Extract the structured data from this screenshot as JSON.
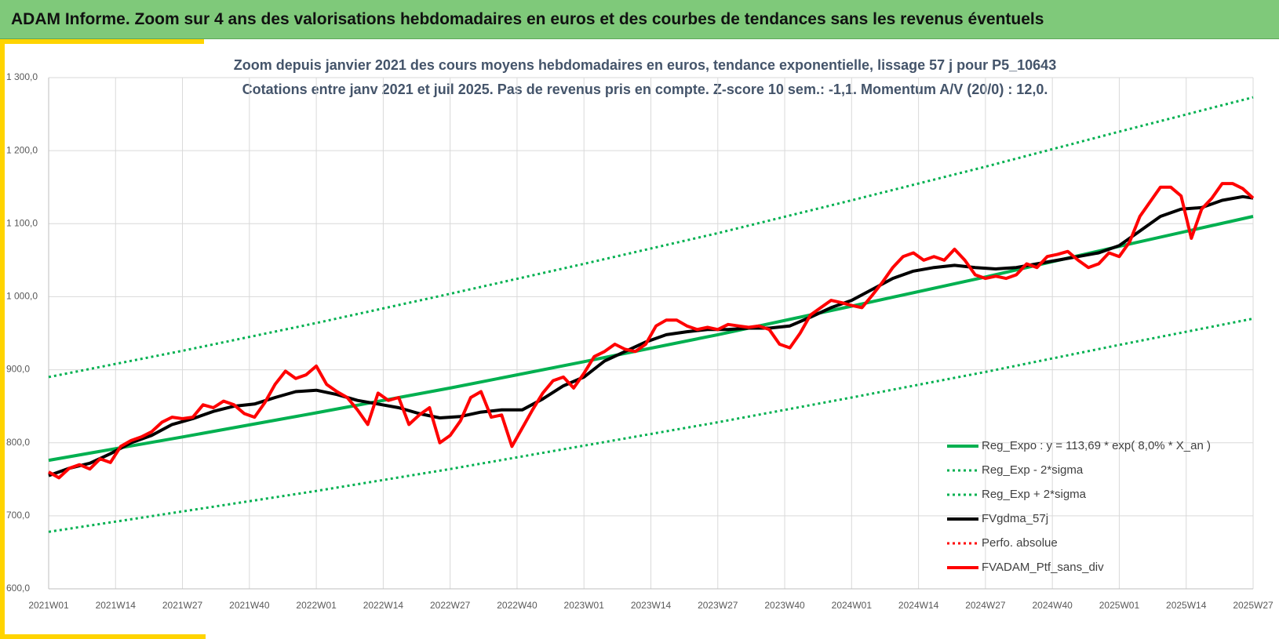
{
  "header": {
    "title": "ADAM Informe. Zoom sur 4 ans des valorisations hebdomadaires en euros et des courbes de tendances sans les revenus éventuels"
  },
  "chart_data": {
    "type": "line",
    "title": "Zoom depuis janvier 2021 des cours moyens hebdomadaires  en euros, tendance exponentielle, lissage 57 j pour P5_10643",
    "subtitle": "Cotations entre janv 2021 et juil 2025. Pas de revenus pris en compte. Z-score 10 sem.: -1,1. Momentum A/V (20/0) : 12,0.",
    "xticks": [
      "2021W01",
      "2021W14",
      "2021W27",
      "2021W40",
      "2022W01",
      "2022W14",
      "2022W27",
      "2022W40",
      "2023W01",
      "2023W14",
      "2023W27",
      "2023W40",
      "2024W01",
      "2024W14",
      "2024W27",
      "2024W40",
      "2025W01",
      "2025W14",
      "2025W27"
    ],
    "ylim": [
      600,
      1300
    ],
    "yticks": [
      {
        "value": 600,
        "label": "600,0"
      },
      {
        "value": 700,
        "label": "700,0"
      },
      {
        "value": 800,
        "label": "800,0"
      },
      {
        "value": 900,
        "label": "900,0"
      },
      {
        "value": 1000,
        "label": "1 000,0"
      },
      {
        "value": 1100,
        "label": "1 100,0"
      },
      {
        "value": 1200,
        "label": "1 200,0"
      },
      {
        "value": 1300,
        "label": "1 300,0"
      }
    ],
    "grid": true,
    "legend": "right",
    "series": [
      {
        "name": "Reg_Expo : y = 113,69 * exp( 8,0% *  X_an )",
        "color": "#00b050",
        "dash": "solid",
        "width": 4,
        "x": [
          "2021W01",
          "2021W27",
          "2022W01",
          "2022W27",
          "2023W01",
          "2023W27",
          "2024W01",
          "2024W27",
          "2025W01",
          "2025W27"
        ],
        "values": [
          776,
          808,
          841,
          875,
          911,
          948,
          987,
          1027,
          1069,
          1110
        ]
      },
      {
        "name": "Reg_Exp - 2*sigma",
        "color": "#00b050",
        "dash": "dotted",
        "width": 3,
        "x": [
          "2021W01",
          "2021W27",
          "2022W01",
          "2022W27",
          "2023W01",
          "2023W27",
          "2024W01",
          "2024W27",
          "2025W01",
          "2025W27"
        ],
        "values": [
          678,
          706,
          734,
          764,
          796,
          828,
          862,
          897,
          934,
          970
        ]
      },
      {
        "name": "Reg_Exp + 2*sigma",
        "color": "#00b050",
        "dash": "dotted",
        "width": 3,
        "x": [
          "2021W01",
          "2021W27",
          "2022W01",
          "2022W27",
          "2023W01",
          "2023W27",
          "2024W01",
          "2024W27",
          "2025W01",
          "2025W27"
        ],
        "values": [
          890,
          926,
          964,
          1004,
          1045,
          1087,
          1132,
          1178,
          1226,
          1273
        ]
      },
      {
        "name": "FVgdma_57j",
        "color": "#000000",
        "dash": "solid",
        "width": 4,
        "x": [
          "2021W01",
          "2021W05",
          "2021W09",
          "2021W13",
          "2021W17",
          "2021W21",
          "2021W25",
          "2021W29",
          "2021W33",
          "2021W37",
          "2021W41",
          "2021W45",
          "2021W49",
          "2022W01",
          "2022W05",
          "2022W09",
          "2022W13",
          "2022W17",
          "2022W21",
          "2022W25",
          "2022W29",
          "2022W33",
          "2022W37",
          "2022W41",
          "2022W45",
          "2022W49",
          "2023W01",
          "2023W05",
          "2023W09",
          "2023W13",
          "2023W17",
          "2023W21",
          "2023W25",
          "2023W29",
          "2023W33",
          "2023W37",
          "2023W41",
          "2023W45",
          "2023W49",
          "2024W01",
          "2024W05",
          "2024W09",
          "2024W13",
          "2024W17",
          "2024W21",
          "2024W25",
          "2024W29",
          "2024W33",
          "2024W37",
          "2024W41",
          "2024W45",
          "2024W49",
          "2025W01",
          "2025W05",
          "2025W09",
          "2025W13",
          "2025W17",
          "2025W21",
          "2025W25",
          "2025W27"
        ],
        "values": [
          755,
          765,
          772,
          785,
          800,
          810,
          825,
          833,
          843,
          850,
          853,
          862,
          870,
          872,
          866,
          858,
          853,
          848,
          840,
          834,
          836,
          842,
          845,
          845,
          860,
          878,
          890,
          912,
          925,
          938,
          948,
          952,
          955,
          955,
          957,
          957,
          960,
          972,
          985,
          995,
          1010,
          1025,
          1035,
          1040,
          1043,
          1040,
          1038,
          1040,
          1045,
          1050,
          1055,
          1060,
          1070,
          1090,
          1110,
          1120,
          1122,
          1132,
          1137,
          1135
        ]
      },
      {
        "name": "Perfo. absolue",
        "color": "#ff0000",
        "dash": "dotted",
        "width": 3,
        "x": [],
        "values": []
      },
      {
        "name": "FVADAM_Ptf_sans_div",
        "color": "#ff0000",
        "dash": "solid",
        "width": 4,
        "x": [
          "2021W01",
          "2021W03",
          "2021W05",
          "2021W07",
          "2021W09",
          "2021W11",
          "2021W13",
          "2021W15",
          "2021W17",
          "2021W19",
          "2021W21",
          "2021W23",
          "2021W25",
          "2021W27",
          "2021W29",
          "2021W31",
          "2021W33",
          "2021W35",
          "2021W37",
          "2021W39",
          "2021W41",
          "2021W43",
          "2021W45",
          "2021W47",
          "2021W49",
          "2021W51",
          "2022W01",
          "2022W03",
          "2022W05",
          "2022W07",
          "2022W09",
          "2022W11",
          "2022W13",
          "2022W15",
          "2022W17",
          "2022W19",
          "2022W21",
          "2022W23",
          "2022W25",
          "2022W27",
          "2022W29",
          "2022W31",
          "2022W33",
          "2022W35",
          "2022W37",
          "2022W39",
          "2022W41",
          "2022W43",
          "2022W45",
          "2022W47",
          "2022W49",
          "2022W51",
          "2023W01",
          "2023W03",
          "2023W05",
          "2023W07",
          "2023W09",
          "2023W11",
          "2023W13",
          "2023W15",
          "2023W17",
          "2023W19",
          "2023W21",
          "2023W23",
          "2023W25",
          "2023W27",
          "2023W29",
          "2023W31",
          "2023W33",
          "2023W35",
          "2023W37",
          "2023W39",
          "2023W41",
          "2023W43",
          "2023W45",
          "2023W47",
          "2023W49",
          "2023W51",
          "2024W01",
          "2024W03",
          "2024W05",
          "2024W07",
          "2024W09",
          "2024W11",
          "2024W13",
          "2024W15",
          "2024W17",
          "2024W19",
          "2024W21",
          "2024W23",
          "2024W25",
          "2024W27",
          "2024W29",
          "2024W31",
          "2024W33",
          "2024W35",
          "2024W37",
          "2024W39",
          "2024W41",
          "2024W43",
          "2024W45",
          "2024W47",
          "2024W49",
          "2024W51",
          "2025W01",
          "2025W03",
          "2025W05",
          "2025W07",
          "2025W09",
          "2025W11",
          "2025W13",
          "2025W15",
          "2025W17",
          "2025W19",
          "2025W21",
          "2025W23",
          "2025W25",
          "2025W27"
        ],
        "values": [
          760,
          752,
          765,
          770,
          764,
          778,
          773,
          795,
          803,
          808,
          815,
          828,
          835,
          833,
          835,
          852,
          848,
          857,
          852,
          840,
          835,
          855,
          880,
          898,
          888,
          893,
          905,
          880,
          870,
          862,
          845,
          825,
          868,
          858,
          862,
          825,
          838,
          848,
          800,
          810,
          830,
          862,
          870,
          835,
          838,
          795,
          820,
          845,
          868,
          885,
          890,
          875,
          895,
          918,
          925,
          935,
          928,
          925,
          935,
          960,
          968,
          968,
          960,
          955,
          958,
          955,
          962,
          960,
          958,
          960,
          955,
          935,
          930,
          950,
          975,
          985,
          995,
          992,
          988,
          985,
          1002,
          1020,
          1040,
          1055,
          1060,
          1050,
          1055,
          1050,
          1065,
          1050,
          1030,
          1025,
          1028,
          1025,
          1030,
          1045,
          1040,
          1055,
          1058,
          1062,
          1050,
          1040,
          1045,
          1060,
          1055,
          1075,
          1110,
          1130,
          1150,
          1150,
          1138,
          1080,
          1120,
          1135,
          1155,
          1155,
          1148,
          1135
        ]
      }
    ]
  }
}
